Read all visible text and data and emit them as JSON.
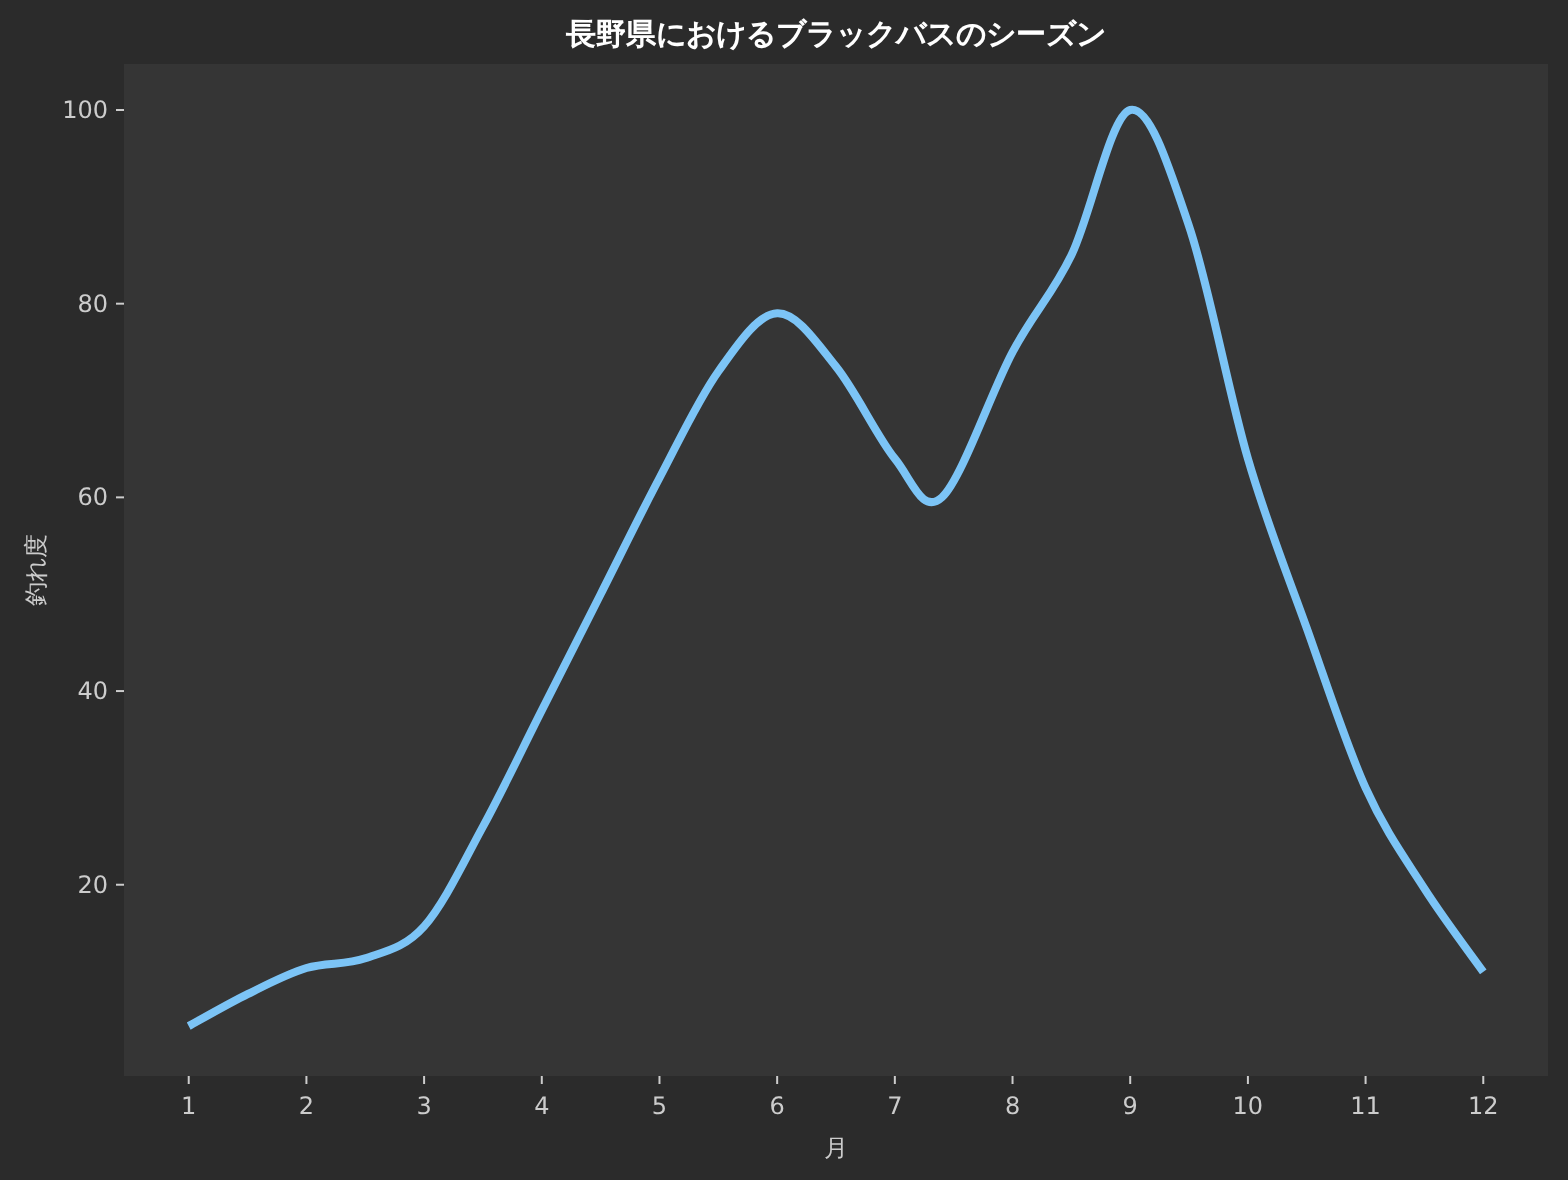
{
  "chart_data": {
    "type": "line",
    "title": "長野県におけるブラックバスのシーズン",
    "xlabel": "月",
    "ylabel": "釣れ度",
    "x": [
      1,
      1.5,
      2,
      2.5,
      3,
      3.5,
      4,
      4.5,
      5,
      5.5,
      6,
      6.5,
      7,
      7.4,
      8,
      8.5,
      9,
      9.5,
      10,
      10.5,
      11,
      11.5,
      12
    ],
    "series": [
      {
        "color": "#7cc4f6",
        "values": [
          5.4,
          8.7,
          11.4,
          12.4,
          15.7,
          26,
          38,
          50,
          62,
          73,
          79,
          73.5,
          64,
          60,
          75,
          85,
          100,
          88,
          64,
          46.5,
          30,
          19.6,
          11
        ]
      }
    ],
    "xlim": [
      0.45,
      12.55
    ],
    "ylim": [
      0.25,
      104.75
    ],
    "xticks": [
      1,
      2,
      3,
      4,
      5,
      6,
      7,
      8,
      9,
      10,
      11,
      12
    ],
    "yticks": [
      20,
      40,
      60,
      80,
      100
    ]
  }
}
